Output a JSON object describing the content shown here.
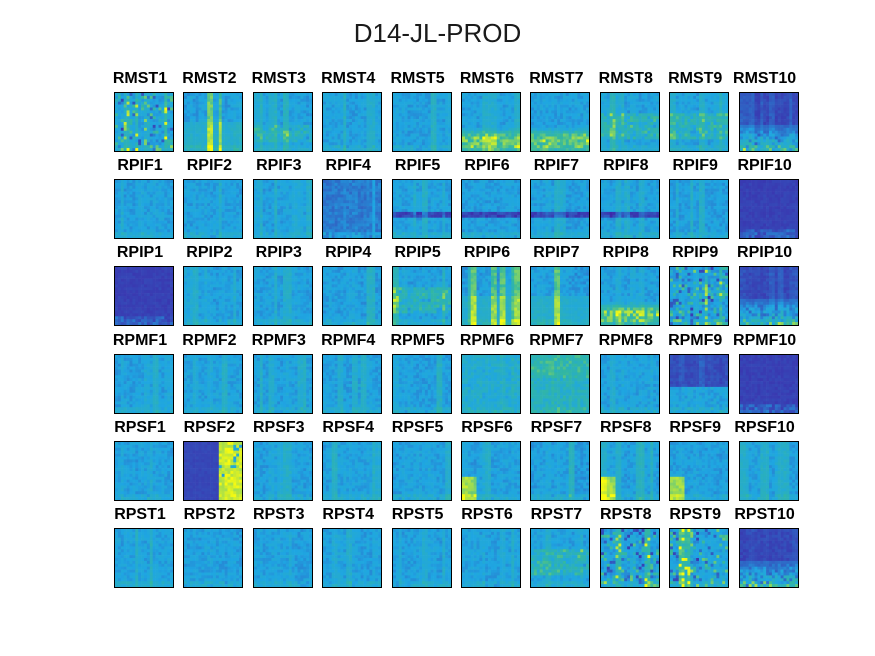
{
  "figure_title": "D14-JL-PROD",
  "colors": {
    "low": "#3e26a8",
    "mid": "#1fa6e2",
    "teal": "#33b7a0",
    "high": "#f9fb0e",
    "frame": "#000000"
  },
  "chart_data": {
    "type": "heatmap",
    "title": "D14-JL-PROD",
    "layout": "6 rows x 10 columns of small spectrogram-like image panels, no axis ticks",
    "colormap": "parula",
    "rows": [
      {
        "name": "RMST",
        "panels": [
          "RMST1",
          "RMST2",
          "RMST3",
          "RMST4",
          "RMST5",
          "RMST6",
          "RMST7",
          "RMST8",
          "RMST9",
          "RMST10"
        ],
        "style": [
          "bright-mixed",
          "bright-vertical",
          "low-bright",
          "cool",
          "cool",
          "bottom-bright",
          "bottom-bright",
          "mid-bright",
          "mid-bright",
          "dark-bottom-bright"
        ]
      },
      {
        "name": "RPIF",
        "panels": [
          "RPIF1",
          "RPIF2",
          "RPIF3",
          "RPIF4",
          "RPIF5",
          "RPIF6",
          "RPIF7",
          "RPIF8",
          "RPIF9",
          "RPIF10"
        ],
        "style": [
          "cool",
          "cool",
          "cool",
          "dark-cool",
          "cool-band",
          "cool-band",
          "cool-band",
          "cool-band",
          "cool",
          "dark-flat"
        ]
      },
      {
        "name": "RPIP",
        "panels": [
          "RPIP1",
          "RPIP2",
          "RPIP3",
          "RPIP4",
          "RPIP5",
          "RPIP6",
          "RPIP7",
          "RPIP8",
          "RPIP9",
          "RPIP10"
        ],
        "style": [
          "dark-flat",
          "cool",
          "cool",
          "cool-vertical",
          "mid-bright",
          "bright-vertical",
          "bright-vertical",
          "bottom-bright",
          "bright-mixed",
          "dark-bottom-bright"
        ]
      },
      {
        "name": "RPMF",
        "panels": [
          "RPMF1",
          "RPMF2",
          "RPMF3",
          "RPMF4",
          "RPMF5",
          "RPMF6",
          "RPMF7",
          "RPMF8",
          "RPMF9",
          "RPMF10"
        ],
        "style": [
          "cool",
          "cool",
          "cool",
          "cool",
          "cool",
          "teal-mixed",
          "teal-bright",
          "cool",
          "dark-top",
          "dark-flat"
        ]
      },
      {
        "name": "RPSF",
        "panels": [
          "RPSF1",
          "RPSF2",
          "RPSF3",
          "RPSF4",
          "RPSF5",
          "RPSF6",
          "RPSF7",
          "RPSF8",
          "RPSF9",
          "RPSF10"
        ],
        "style": [
          "cool",
          "split-yellow",
          "cool",
          "cool",
          "cool",
          "corner-bright",
          "cool-vertical",
          "corner-bright",
          "corner-bright",
          "cool"
        ]
      },
      {
        "name": "RPST",
        "panels": [
          "RPST1",
          "RPST2",
          "RPST3",
          "RPST4",
          "RPST5",
          "RPST6",
          "RPST7",
          "RPST8",
          "RPST9",
          "RPST10"
        ],
        "style": [
          "cool",
          "cool",
          "cool",
          "cool",
          "cool",
          "cool",
          "mid-bright",
          "bright-mixed",
          "bright-mixed",
          "dark-bottom-bright"
        ]
      }
    ]
  }
}
